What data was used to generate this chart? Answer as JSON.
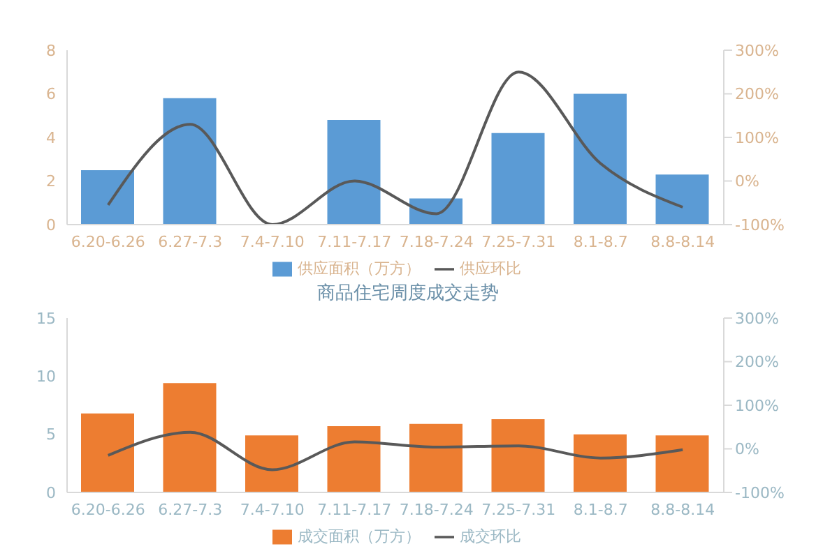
{
  "chart_data": [
    {
      "type": "bar",
      "categories": [
        "6.20-6.26",
        "6.27-7.3",
        "7.4-7.10",
        "7.11-7.17",
        "7.18-7.24",
        "7.25-7.31",
        "8.1-8.7",
        "8.8-8.14"
      ],
      "series": [
        {
          "name": "供应面积（万方）",
          "color": "#5b9bd5",
          "values": [
            2.5,
            5.8,
            0,
            4.8,
            1.2,
            4.2,
            6.0,
            2.3
          ]
        },
        {
          "name": "供应环比",
          "type": "line",
          "axis": "y2",
          "color": "#595959",
          "values": [
            -55,
            130,
            -100,
            0,
            -75,
            250,
            40,
            -60
          ]
        }
      ],
      "ylim": [
        0,
        8
      ],
      "yticks": [
        0,
        2,
        4,
        6,
        8
      ],
      "y2lim": [
        -100,
        300
      ],
      "y2ticks": [
        {
          "value": -100,
          "label": "-100%"
        },
        {
          "value": 0,
          "label": "0%"
        },
        {
          "value": 100,
          "label": "100%"
        },
        {
          "value": 200,
          "label": "200%"
        },
        {
          "value": 300,
          "label": "300%"
        }
      ],
      "grid": false,
      "legend": "bottom",
      "marker": "none",
      "line_style": "solid"
    },
    {
      "type": "bar",
      "title": "商品住宅周度成交走势",
      "categories": [
        "6.20-6.26",
        "6.27-7.3",
        "7.4-7.10",
        "7.11-7.17",
        "7.18-7.24",
        "7.25-7.31",
        "8.1-8.7",
        "8.8-8.14"
      ],
      "series": [
        {
          "name": "成交面积（万方）",
          "color": "#ed7d31",
          "values": [
            6.8,
            9.4,
            4.9,
            5.7,
            5.9,
            6.3,
            5.0,
            4.9
          ]
        },
        {
          "name": "成交环比",
          "type": "line",
          "axis": "y2",
          "color": "#595959",
          "values": [
            -15,
            38,
            -48,
            16,
            4,
            7,
            -21,
            -2
          ]
        }
      ],
      "ylim": [
        0,
        15
      ],
      "yticks": [
        0,
        5,
        10,
        15
      ],
      "y2lim": [
        -100,
        300
      ],
      "y2ticks": [
        {
          "value": -100,
          "label": "-100%"
        },
        {
          "value": 0,
          "label": "0%"
        },
        {
          "value": 100,
          "label": "100%"
        },
        {
          "value": 200,
          "label": "200%"
        },
        {
          "value": 300,
          "label": "300%"
        }
      ],
      "grid": false,
      "legend": "bottom",
      "marker": "none",
      "line_style": "solid"
    }
  ]
}
